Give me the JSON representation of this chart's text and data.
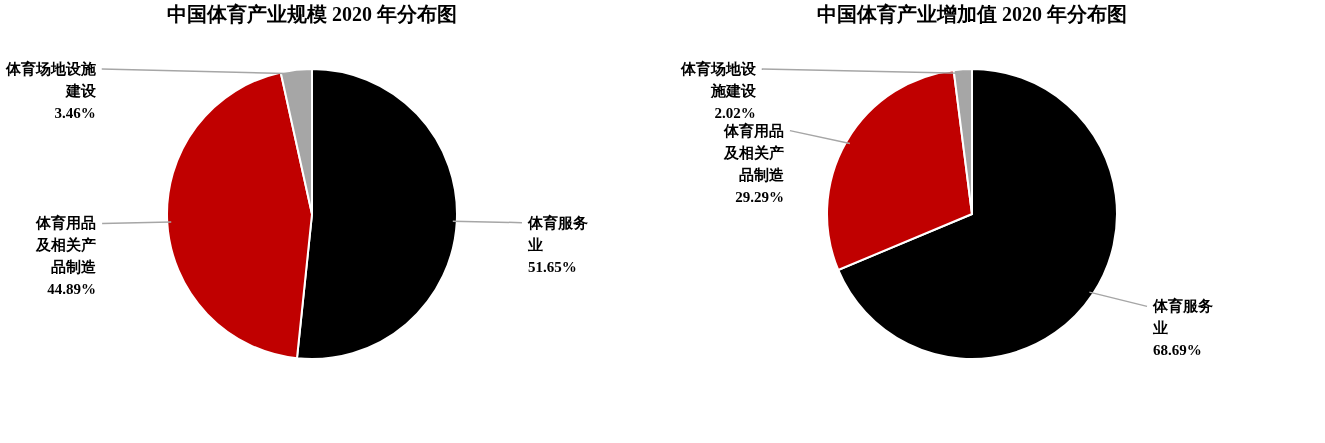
{
  "chart_data": [
    {
      "type": "pie",
      "title": "中国体育产业规模 2020 年分布图",
      "categories": [
        "体育服务业",
        "体育用品及相关产品制造",
        "体育场地设施建设"
      ],
      "values": [
        51.65,
        44.89,
        3.46
      ],
      "colors": [
        "#000000",
        "#c00000",
        "#a6a6a6"
      ],
      "value_labels": [
        "51.65%",
        "44.89%",
        "3.46%"
      ],
      "legend": false
    },
    {
      "type": "pie",
      "title": "中国体育产业增加值 2020 年分布图",
      "categories": [
        "体育服务业",
        "体育用品及相关产品制造",
        "体育场地设施建设"
      ],
      "values": [
        68.69,
        29.29,
        2.02
      ],
      "colors": [
        "#000000",
        "#c00000",
        "#a6a6a6"
      ],
      "value_labels": [
        "68.69%",
        "29.29%",
        "2.02%"
      ],
      "legend": false
    }
  ]
}
